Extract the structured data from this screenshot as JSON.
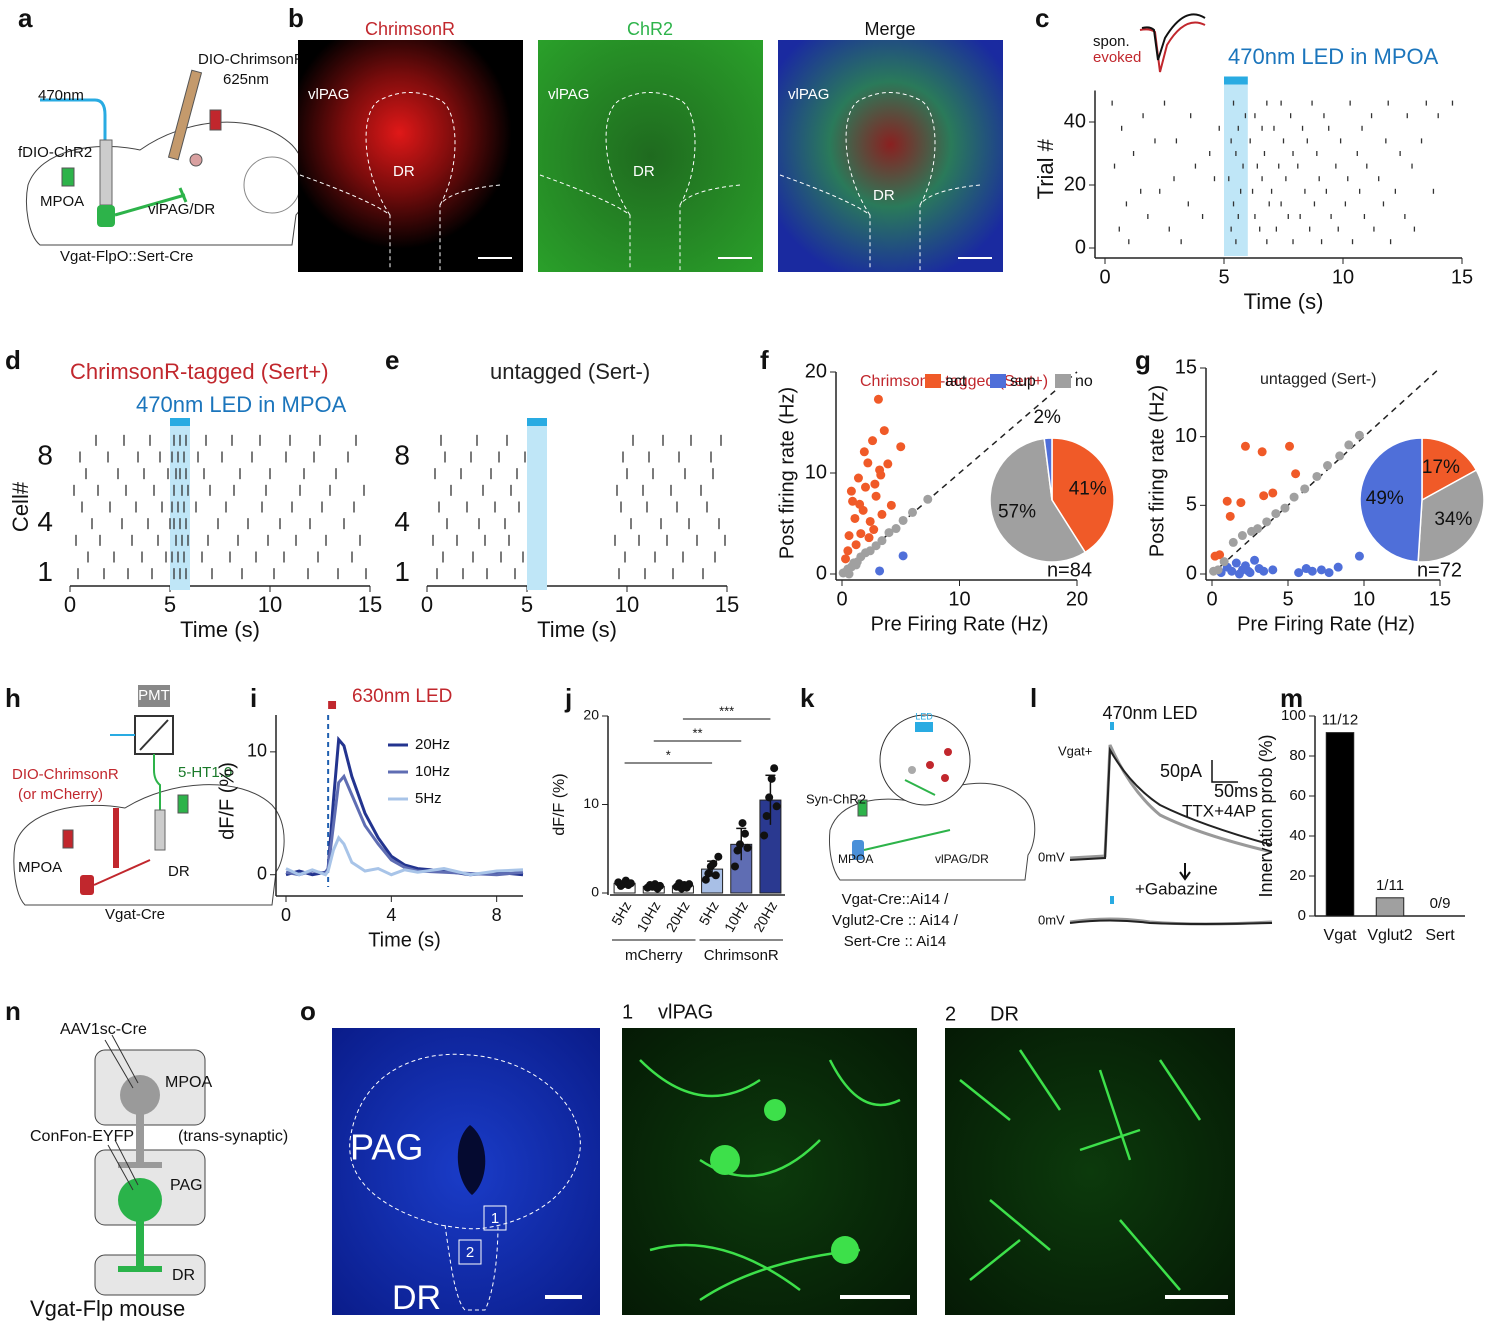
{
  "panel_labels": [
    "a",
    "b",
    "c",
    "d",
    "e",
    "f",
    "g",
    "h",
    "i",
    "j",
    "k",
    "l",
    "m",
    "n",
    "o"
  ],
  "a": {
    "light": "470nm",
    "virus1": "fDIO-ChR2",
    "virus2": "DIO-ChrimsonR",
    "light2": "625nm",
    "region1": "MPOA",
    "region2": "vlPAG/DR",
    "mouse": "Vgat-FlpO::Sert-Cre"
  },
  "b": {
    "titles": [
      "ChrimsonR",
      "ChR2",
      "Merge"
    ],
    "regions": [
      "vlPAG",
      "DR"
    ]
  },
  "c": {
    "waveform_labels": [
      "spon.",
      "evoked"
    ]
  },
  "h": {
    "detector": "PMT",
    "virus": "DIO-ChrimsonR",
    "control": "(or mCherry)",
    "sensor": "5-HT1.0",
    "region1": "MPOA",
    "region2": "DR",
    "mouse": "Vgat-Cre"
  },
  "k": {
    "virus": "Syn-ChR2",
    "light": "LED",
    "region1": "MPOA",
    "region2": "vlPAG/DR",
    "mice": [
      "Vgat-Cre::Ai14 /",
      "Vglut2-Cre :: Ai14 /",
      "Sert-Cre :: Ai14"
    ]
  },
  "l": {
    "stim": "470nm LED",
    "cell": "Vgat+",
    "scale_y": "50pA",
    "scale_x": "50ms",
    "drug1": "TTX+4AP",
    "drug2": "+Gabazine",
    "holding": "0mV"
  },
  "n": {
    "virus1": "AAV1sc-Cre",
    "region1": "MPOA",
    "virus2": "ConFon-EYFP",
    "note": "(trans-synaptic)",
    "region2": "PAG",
    "region3": "DR",
    "mouse": "Vgat-Flp mouse"
  },
  "o": {
    "regions": [
      "PAG",
      "DR"
    ],
    "boxes": [
      "1",
      "2"
    ],
    "titles": [
      "1",
      "vlPAG",
      "2",
      "DR"
    ]
  },
  "chart_data": [
    {
      "type": "raster",
      "led_label": "470nm LED in MPOA",
      "xlabel": "Time (s)",
      "ylabel": "Trial #",
      "xlim": [
        0,
        15
      ],
      "ylim": [
        0,
        50
      ],
      "xticks": [
        0,
        5,
        10,
        15
      ],
      "yticks": [
        0,
        20,
        40
      ],
      "led": [
        5,
        6
      ],
      "led_color": "#29abe2",
      "color": "#333333",
      "series": [
        {
          "row": 2,
          "x": [
            1.0,
            3.2,
            5.5,
            6.8,
            7.9,
            9.1,
            10.4,
            12.0
          ]
        },
        {
          "row": 6,
          "x": [
            0.6,
            2.7,
            5.3,
            6.5,
            7.2,
            8.6,
            9.8,
            11.3,
            13.0
          ]
        },
        {
          "row": 10,
          "x": [
            1.8,
            4.1,
            5.6,
            6.3,
            7.7,
            8.2,
            9.5,
            10.9,
            12.6
          ]
        },
        {
          "row": 14,
          "x": [
            0.9,
            3.5,
            5.4,
            6.9,
            7.4,
            8.8,
            10.1,
            11.7
          ]
        },
        {
          "row": 18,
          "x": [
            1.5,
            2.3,
            5.7,
            6.2,
            7.0,
            8.4,
            9.3,
            10.7,
            12.2,
            13.8
          ]
        },
        {
          "row": 22,
          "x": [
            2.9,
            4.6,
            5.2,
            6.6,
            7.6,
            9.0,
            10.2,
            11.5
          ]
        },
        {
          "row": 26,
          "x": [
            0.4,
            3.8,
            5.8,
            6.4,
            7.3,
            8.1,
            9.7,
            11.0,
            12.9
          ]
        },
        {
          "row": 30,
          "x": [
            1.2,
            4.4,
            5.5,
            6.7,
            7.9,
            8.9,
            10.6,
            12.4
          ]
        },
        {
          "row": 34,
          "x": [
            2.1,
            3.0,
            5.3,
            6.1,
            7.5,
            8.5,
            9.9,
            11.8,
            13.3
          ]
        },
        {
          "row": 38,
          "x": [
            0.7,
            4.8,
            5.6,
            6.6,
            7.1,
            8.3,
            9.4,
            10.8
          ]
        },
        {
          "row": 42,
          "x": [
            1.6,
            3.6,
            5.9,
            6.3,
            7.8,
            9.2,
            11.2,
            12.7,
            14.0
          ]
        },
        {
          "row": 46,
          "x": [
            0.3,
            2.5,
            5.4,
            6.8,
            7.4,
            8.7,
            10.3,
            11.9,
            13.5,
            14.6
          ]
        }
      ]
    },
    {
      "type": "raster",
      "title": "ChrimsonR-tagged (Sert+)",
      "led_label": "470nm LED in MPOA",
      "xlabel": "Time (s)",
      "ylabel": "Cell#",
      "xlim": [
        0,
        15
      ],
      "ylim": [
        0.5,
        9.5
      ],
      "xticks": [
        0,
        5,
        10,
        15
      ],
      "yticks": [
        1,
        4,
        8
      ],
      "led": [
        5,
        6
      ],
      "led_color": "#29abe2",
      "color": "#333333",
      "series": [
        {
          "row": 1,
          "x": [
            0.4,
            1.7,
            2.9,
            4.1,
            5.2,
            5.5,
            5.8,
            7.1,
            8.6,
            10.2,
            11.9,
            13.4,
            14.8
          ]
        },
        {
          "row": 2,
          "x": [
            0.9,
            2.2,
            3.6,
            4.8,
            5.1,
            5.4,
            5.7,
            6.6,
            8.0,
            9.3,
            10.7,
            12.4,
            14.1
          ]
        },
        {
          "row": 3,
          "x": [
            0.3,
            1.5,
            3.1,
            4.4,
            5.3,
            5.6,
            5.9,
            6.9,
            8.4,
            9.9,
            11.3,
            12.8,
            14.5
          ]
        },
        {
          "row": 4,
          "x": [
            1.1,
            2.6,
            3.9,
            5.0,
            5.2,
            5.5,
            5.8,
            7.4,
            8.9,
            10.5,
            12.0,
            13.7
          ]
        },
        {
          "row": 5,
          "x": [
            0.6,
            2.0,
            3.3,
            4.6,
            5.1,
            5.4,
            5.7,
            6.3,
            7.8,
            9.6,
            11.1,
            12.6,
            14.2
          ]
        },
        {
          "row": 6,
          "x": [
            0.2,
            1.4,
            2.8,
            4.2,
            5.2,
            5.6,
            5.9,
            7.0,
            8.2,
            9.8,
            11.5,
            13.0,
            14.7
          ]
        },
        {
          "row": 7,
          "x": [
            0.8,
            2.4,
            3.7,
            4.9,
            5.3,
            5.5,
            5.8,
            6.7,
            8.5,
            10.0,
            11.7,
            13.3
          ]
        },
        {
          "row": 8,
          "x": [
            0.5,
            1.9,
            3.4,
            4.5,
            5.1,
            5.4,
            5.7,
            6.4,
            7.6,
            9.1,
            10.8,
            12.2,
            13.9
          ]
        },
        {
          "row": 9,
          "x": [
            1.3,
            2.7,
            4.0,
            5.2,
            5.5,
            5.8,
            6.8,
            8.1,
            9.5,
            11.0,
            12.5,
            14.3
          ]
        }
      ]
    },
    {
      "type": "raster",
      "title": "untagged (Sert-)",
      "xlabel": "Time (s)",
      "xlim": [
        0,
        15
      ],
      "ylim": [
        0.5,
        9.5
      ],
      "xticks": [
        0,
        5,
        10,
        15
      ],
      "yticks": [
        1,
        4,
        8
      ],
      "led": [
        5,
        6
      ],
      "led_color": "#29abe2",
      "color": "#333333",
      "series": [
        {
          "row": 1,
          "x": [
            0.5,
            1.8,
            3.0,
            4.4,
            9.6,
            10.9,
            12.3,
            13.8
          ]
        },
        {
          "row": 2,
          "x": [
            0.8,
            2.3,
            3.7,
            4.8,
            9.9,
            11.4,
            12.8,
            14.4
          ]
        },
        {
          "row": 3,
          "x": [
            0.3,
            1.5,
            2.9,
            4.1,
            9.4,
            10.6,
            12.0,
            13.5,
            14.9
          ]
        },
        {
          "row": 4,
          "x": [
            1.0,
            2.6,
            3.9,
            10.2,
            11.7,
            13.1,
            14.6
          ]
        },
        {
          "row": 5,
          "x": [
            0.6,
            2.0,
            3.4,
            4.6,
            9.7,
            11.0,
            12.5,
            14.0
          ]
        },
        {
          "row": 6,
          "x": [
            1.2,
            2.8,
            4.2,
            9.5,
            10.8,
            12.2,
            13.7
          ]
        },
        {
          "row": 7,
          "x": [
            0.4,
            1.7,
            3.2,
            4.5,
            10.0,
            11.3,
            12.9,
            14.3
          ]
        },
        {
          "row": 8,
          "x": [
            0.9,
            2.2,
            3.6,
            4.9,
            9.8,
            11.1,
            12.6,
            14.2
          ]
        },
        {
          "row": 9,
          "x": [
            0.7,
            2.5,
            4.0,
            10.3,
            11.8,
            13.2,
            14.7
          ]
        }
      ]
    },
    {
      "type": "scatter",
      "title": "ChrimsonR-tagged (Sert+)",
      "xlabel": "Pre Firing Rate (Hz)",
      "ylabel": "Post firing rate (Hz)",
      "xlim": [
        0,
        20
      ],
      "ylim": [
        0,
        20
      ],
      "xticks": [
        0,
        10,
        20
      ],
      "yticks": [
        0,
        10,
        20
      ],
      "n_label": "n=84",
      "series": [
        {
          "name": "act",
          "color": "#f05a28",
          "x": [
            0.3,
            0.6,
            0.9,
            1.1,
            1.4,
            1.6,
            1.8,
            2.0,
            2.2,
            2.4,
            2.6,
            2.9,
            3.1,
            3.3,
            3.6,
            3.9,
            4.2,
            1.2,
            2.7,
            3.2,
            0.8,
            1.9,
            2.3,
            3.4,
            5.0,
            2.8,
            1.5,
            0.5
          ],
          "y": [
            1.5,
            3.8,
            7.2,
            5.5,
            9.5,
            4.0,
            6.3,
            8.6,
            11.0,
            5.2,
            13.2,
            7.7,
            17.3,
            9.8,
            14.2,
            10.9,
            6.8,
            2.9,
            4.4,
            10.3,
            8.2,
            12.1,
            3.6,
            5.9,
            12.6,
            8.9,
            6.9,
            2.3
          ]
        },
        {
          "name": "sup",
          "color": "#4f6fd9",
          "x": [
            3.2,
            5.2
          ],
          "y": [
            0.3,
            1.8
          ]
        },
        {
          "name": "no",
          "color": "#a0a0a0",
          "x": [
            0.1,
            0.3,
            0.5,
            0.8,
            1.0,
            1.3,
            1.6,
            2.0,
            2.4,
            2.9,
            3.4,
            4.0,
            4.6,
            5.2,
            6.0,
            7.3,
            0.6,
            1.2
          ],
          "y": [
            0.1,
            0.2,
            0.5,
            0.7,
            1.1,
            1.2,
            1.7,
            2.1,
            2.3,
            2.8,
            3.3,
            4.1,
            4.5,
            5.3,
            6.1,
            7.4,
            0,
            0.9
          ]
        }
      ],
      "pie": {
        "values": [
          41,
          2,
          57
        ],
        "value_labels": [
          "41%",
          "2%",
          "57%"
        ]
      }
    },
    {
      "type": "scatter",
      "title": "untagged (Sert-)",
      "xlabel": "Pre Firing Rate (Hz)",
      "ylabel": "Post firing rate (Hz)",
      "xlim": [
        0,
        15
      ],
      "ylim": [
        0,
        15
      ],
      "xticks": [
        0,
        5,
        10,
        15
      ],
      "yticks": [
        0,
        5,
        10,
        15
      ],
      "n_label": "n=72",
      "series": [
        {
          "color": "#f05a28",
          "x": [
            0.2,
            0.5,
            1.0,
            1.2,
            1.9,
            2.2,
            3.3,
            3.4,
            4.0,
            5.1,
            5.5
          ],
          "y": [
            1.3,
            1.4,
            5.3,
            4.2,
            5.2,
            9.3,
            8.9,
            5.7,
            5.9,
            9.3,
            7.3
          ]
        },
        {
          "color": "#4f6fd9",
          "x": [
            0.6,
            1.0,
            1.3,
            1.6,
            2.0,
            2.2,
            2.5,
            2.8,
            3.1,
            3.4,
            4.0,
            5.7,
            6.2,
            6.6,
            7.2,
            7.7,
            8.3,
            9.7,
            1.8,
            2.4
          ],
          "y": [
            0.1,
            0.5,
            0.2,
            0.8,
            0.3,
            0.6,
            0.1,
            1.0,
            0.4,
            0.2,
            0.3,
            0.1,
            0.4,
            0.2,
            0.3,
            0.1,
            0.5,
            1.3,
            0.0,
            0.2
          ]
        },
        {
          "color": "#a0a0a0",
          "x": [
            0.1,
            0.4,
            0.8,
            1.4,
            2.0,
            2.6,
            3.0,
            3.6,
            4.2,
            4.8,
            5.4,
            6.1,
            6.9,
            7.6,
            8.4,
            9.0,
            9.7
          ],
          "y": [
            0.2,
            0.3,
            0.9,
            2.3,
            2.8,
            3.1,
            3.3,
            3.8,
            4.4,
            4.8,
            5.6,
            6.2,
            7.1,
            7.9,
            8.6,
            9.4,
            10.1
          ]
        }
      ],
      "pie": {
        "values": [
          17,
          49,
          34
        ],
        "value_labels": [
          "17%",
          "49%",
          "34%"
        ]
      }
    },
    {
      "type": "line",
      "led_label": "630nm LED",
      "xlabel": "Time (s)",
      "ylabel": "dF/F (%)",
      "xlim": [
        0,
        9
      ],
      "ylim": [
        -1,
        13
      ],
      "xticks": [
        0,
        4,
        8
      ],
      "yticks": [
        0,
        10
      ],
      "led": [
        1.6,
        1.9
      ],
      "led_color": "#c1272d",
      "x": [
        0,
        0.5,
        1,
        1.5,
        1.6,
        1.8,
        2.0,
        2.2,
        2.5,
        3,
        3.5,
        4,
        4.5,
        5,
        6,
        7,
        8,
        9
      ],
      "series": [
        {
          "name": "20Hz",
          "color": "#23348f",
          "values": [
            0,
            0.3,
            0,
            0.2,
            0.5,
            6,
            11,
            10.5,
            8,
            5,
            3,
            1.5,
            0.8,
            0.5,
            0.3,
            0,
            0.2,
            0
          ]
        },
        {
          "name": "10Hz",
          "color": "#5f6db3",
          "values": [
            0.2,
            0,
            0.3,
            0.1,
            0.5,
            4,
            7.5,
            8,
            6.5,
            4,
            2.5,
            1.2,
            0.6,
            0.3,
            0.2,
            0.1,
            0,
            0.2
          ]
        },
        {
          "name": "5Hz",
          "color": "#a8c4e8",
          "values": [
            0.5,
            0,
            0.4,
            0,
            0.3,
            2,
            3,
            2.5,
            1,
            0.3,
            0.5,
            0,
            0.4,
            0.2,
            0.5,
            0,
            0.3,
            0.4
          ]
        }
      ]
    },
    {
      "type": "bar",
      "ylabel": "dF/F (%)",
      "ylim": [
        0,
        20
      ],
      "yticks": [
        0,
        10,
        20
      ],
      "categories": [
        "5Hz",
        "10Hz",
        "20Hz",
        "5Hz",
        "10Hz",
        "20Hz"
      ],
      "groups": [
        "mCherry",
        "ChrimsonR"
      ],
      "values": [
        1.1,
        0.75,
        0.8,
        2.7,
        5.5,
        10.5
      ],
      "errors": [
        0.2,
        0.2,
        0.2,
        0.9,
        1.8,
        2.8
      ],
      "colors": [
        "#ffffff",
        "#ffffff",
        "#ffffff",
        "#a8bfe6",
        "#5f6db3",
        "#2a3990"
      ],
      "dots": [
        [
          1.2,
          0.8,
          1.0,
          1.4,
          0.9,
          1.1
        ],
        [
          0.6,
          0.9,
          0.7,
          1.0,
          0.5,
          0.8
        ],
        [
          0.7,
          1.1,
          0.5,
          0.9,
          0.6,
          1.0
        ],
        [
          1.5,
          2.2,
          3.0,
          3.3,
          2.0,
          4.1
        ],
        [
          3.0,
          4.8,
          5.5,
          7.9,
          6.7,
          5.1
        ],
        [
          6.5,
          8.7,
          10.8,
          12.9,
          14.1,
          9.8
        ]
      ],
      "significance": [
        "*",
        "**",
        "***"
      ]
    },
    {
      "type": "bar",
      "ylabel": "Innervation prob (%)",
      "ylim": [
        0,
        100
      ],
      "yticks": [
        0,
        20,
        40,
        60,
        80,
        100
      ],
      "categories": [
        "Vgat",
        "Vglut2",
        "Sert"
      ],
      "values": [
        91.7,
        9.1,
        0
      ],
      "value_labels": [
        "11/12",
        "1/11",
        "0/9"
      ],
      "colors": [
        "#000000",
        "#a0a0a0",
        "#a0a0a0"
      ]
    }
  ]
}
